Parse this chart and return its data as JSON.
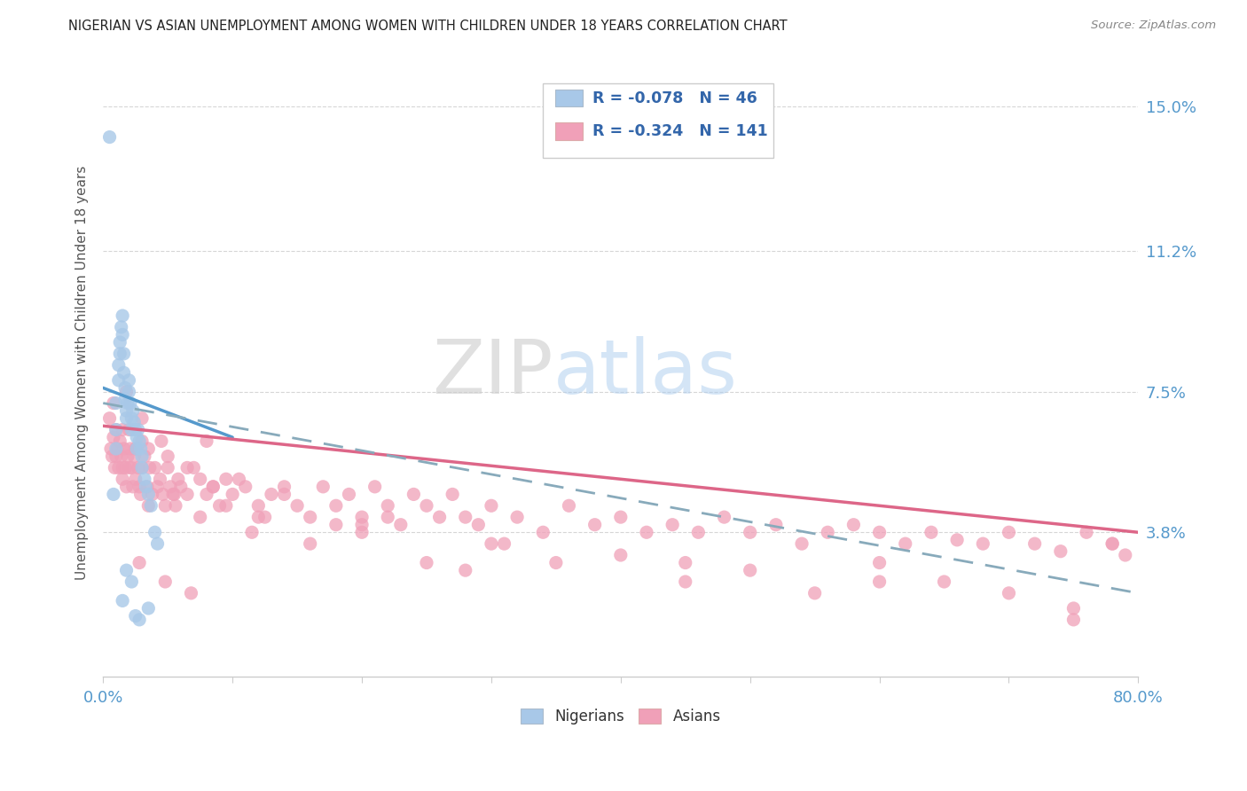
{
  "title": "NIGERIAN VS ASIAN UNEMPLOYMENT AMONG WOMEN WITH CHILDREN UNDER 18 YEARS CORRELATION CHART",
  "source": "Source: ZipAtlas.com",
  "ylabel": "Unemployment Among Women with Children Under 18 years",
  "xlim": [
    0.0,
    0.8
  ],
  "ylim": [
    0.0,
    0.16
  ],
  "yticks_right": [
    0.038,
    0.075,
    0.112,
    0.15
  ],
  "ytick_right_labels": [
    "3.8%",
    "7.5%",
    "11.2%",
    "15.0%"
  ],
  "legend_R_nigerian": "-0.078",
  "legend_N_nigerian": "46",
  "legend_R_asian": "-0.324",
  "legend_N_asian": "141",
  "nigerian_color": "#a8c8e8",
  "asian_color": "#f0a0b8",
  "nigerian_line_color": "#5599cc",
  "asian_line_color": "#dd6688",
  "dashed_line_color": "#88aabb",
  "background_color": "#ffffff",
  "nigerian_x": [
    0.005,
    0.008,
    0.01,
    0.01,
    0.01,
    0.012,
    0.012,
    0.013,
    0.013,
    0.014,
    0.015,
    0.015,
    0.016,
    0.016,
    0.017,
    0.017,
    0.018,
    0.018,
    0.019,
    0.02,
    0.02,
    0.021,
    0.022,
    0.022,
    0.023,
    0.024,
    0.025,
    0.026,
    0.026,
    0.027,
    0.028,
    0.029,
    0.03,
    0.03,
    0.032,
    0.033,
    0.035,
    0.037,
    0.04,
    0.042,
    0.018,
    0.022,
    0.015,
    0.035,
    0.028,
    0.025
  ],
  "nigerian_y": [
    0.142,
    0.048,
    0.072,
    0.065,
    0.06,
    0.082,
    0.078,
    0.088,
    0.085,
    0.092,
    0.095,
    0.09,
    0.085,
    0.08,
    0.076,
    0.073,
    0.07,
    0.068,
    0.072,
    0.078,
    0.075,
    0.072,
    0.068,
    0.065,
    0.07,
    0.067,
    0.065,
    0.063,
    0.06,
    0.065,
    0.062,
    0.06,
    0.058,
    0.055,
    0.052,
    0.05,
    0.048,
    0.045,
    0.038,
    0.035,
    0.028,
    0.025,
    0.02,
    0.018,
    0.015,
    0.016
  ],
  "asian_x": [
    0.005,
    0.006,
    0.007,
    0.008,
    0.009,
    0.01,
    0.01,
    0.011,
    0.012,
    0.013,
    0.014,
    0.015,
    0.015,
    0.016,
    0.017,
    0.018,
    0.019,
    0.02,
    0.02,
    0.021,
    0.022,
    0.023,
    0.024,
    0.025,
    0.026,
    0.027,
    0.028,
    0.029,
    0.03,
    0.03,
    0.032,
    0.034,
    0.035,
    0.036,
    0.038,
    0.04,
    0.042,
    0.044,
    0.046,
    0.048,
    0.05,
    0.052,
    0.054,
    0.056,
    0.058,
    0.06,
    0.065,
    0.07,
    0.075,
    0.08,
    0.085,
    0.09,
    0.095,
    0.1,
    0.11,
    0.12,
    0.13,
    0.14,
    0.15,
    0.16,
    0.17,
    0.18,
    0.19,
    0.2,
    0.21,
    0.22,
    0.23,
    0.24,
    0.25,
    0.26,
    0.27,
    0.28,
    0.29,
    0.3,
    0.32,
    0.34,
    0.36,
    0.38,
    0.4,
    0.42,
    0.44,
    0.46,
    0.48,
    0.5,
    0.52,
    0.54,
    0.56,
    0.58,
    0.6,
    0.62,
    0.64,
    0.66,
    0.68,
    0.7,
    0.72,
    0.74,
    0.76,
    0.78,
    0.79,
    0.015,
    0.025,
    0.035,
    0.045,
    0.055,
    0.065,
    0.075,
    0.085,
    0.095,
    0.105,
    0.115,
    0.125,
    0.14,
    0.16,
    0.18,
    0.2,
    0.22,
    0.25,
    0.28,
    0.31,
    0.35,
    0.4,
    0.45,
    0.5,
    0.55,
    0.6,
    0.65,
    0.7,
    0.75,
    0.008,
    0.018,
    0.03,
    0.05,
    0.08,
    0.12,
    0.2,
    0.3,
    0.45,
    0.6,
    0.75,
    0.78,
    0.028,
    0.048,
    0.068
  ],
  "asian_y": [
    0.068,
    0.06,
    0.058,
    0.063,
    0.055,
    0.058,
    0.065,
    0.06,
    0.055,
    0.062,
    0.058,
    0.052,
    0.065,
    0.06,
    0.055,
    0.05,
    0.058,
    0.065,
    0.055,
    0.06,
    0.055,
    0.05,
    0.058,
    0.052,
    0.06,
    0.055,
    0.05,
    0.048,
    0.055,
    0.062,
    0.058,
    0.05,
    0.06,
    0.055,
    0.048,
    0.055,
    0.05,
    0.052,
    0.048,
    0.045,
    0.055,
    0.05,
    0.048,
    0.045,
    0.052,
    0.05,
    0.048,
    0.055,
    0.052,
    0.048,
    0.05,
    0.045,
    0.052,
    0.048,
    0.05,
    0.045,
    0.048,
    0.05,
    0.045,
    0.042,
    0.05,
    0.045,
    0.048,
    0.042,
    0.05,
    0.045,
    0.04,
    0.048,
    0.045,
    0.042,
    0.048,
    0.042,
    0.04,
    0.045,
    0.042,
    0.038,
    0.045,
    0.04,
    0.042,
    0.038,
    0.04,
    0.038,
    0.042,
    0.038,
    0.04,
    0.035,
    0.038,
    0.04,
    0.038,
    0.035,
    0.038,
    0.036,
    0.035,
    0.038,
    0.035,
    0.033,
    0.038,
    0.035,
    0.032,
    0.055,
    0.06,
    0.045,
    0.062,
    0.048,
    0.055,
    0.042,
    0.05,
    0.045,
    0.052,
    0.038,
    0.042,
    0.048,
    0.035,
    0.04,
    0.038,
    0.042,
    0.03,
    0.028,
    0.035,
    0.03,
    0.032,
    0.025,
    0.028,
    0.022,
    0.03,
    0.025,
    0.022,
    0.018,
    0.072,
    0.075,
    0.068,
    0.058,
    0.062,
    0.042,
    0.04,
    0.035,
    0.03,
    0.025,
    0.015,
    0.035,
    0.03,
    0.025,
    0.022
  ],
  "nig_trend_x0": 0.0,
  "nig_trend_x1": 0.1,
  "nig_trend_y0": 0.076,
  "nig_trend_y1": 0.063,
  "asi_trend_x0": 0.0,
  "asi_trend_x1": 0.8,
  "asi_trend_y0": 0.066,
  "asi_trend_y1": 0.038,
  "dash_trend_x0": 0.0,
  "dash_trend_x1": 0.8,
  "dash_trend_y0": 0.072,
  "dash_trend_y1": 0.022
}
